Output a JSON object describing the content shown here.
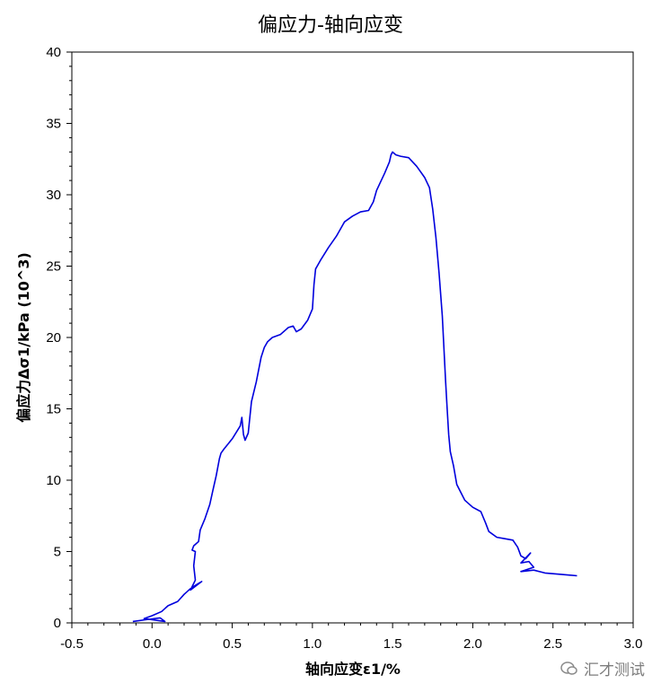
{
  "chart_data": {
    "type": "line",
    "title": "偏应力-轴向应变",
    "xlabel": "轴向应变ε1/%",
    "ylabel": "偏应力Δσ1/kPa  (10^3)",
    "xlim": [
      -0.5,
      3.0
    ],
    "ylim": [
      0,
      40
    ],
    "xticks": [
      -0.5,
      0.0,
      0.5,
      1.0,
      1.5,
      2.0,
      2.5,
      3.0
    ],
    "xtick_labels": [
      "-0.5",
      "0.0",
      "0.5",
      "1.0",
      "1.5",
      "2.0",
      "2.5",
      "3.0"
    ],
    "yticks": [
      0,
      5,
      10,
      15,
      20,
      25,
      30,
      35,
      40
    ],
    "ytick_labels": [
      "0",
      "5",
      "10",
      "15",
      "20",
      "25",
      "30",
      "35",
      "40"
    ],
    "grid": false,
    "line_color": "#0000dd",
    "series": [
      {
        "x": [
          -0.12,
          -0.02,
          0.05,
          0.08,
          -0.05,
          0.0,
          0.06,
          0.1,
          0.16,
          0.2,
          0.24,
          0.28,
          0.31,
          0.24,
          0.27,
          0.26,
          0.27,
          0.25,
          0.26,
          0.29,
          0.3,
          0.33,
          0.36,
          0.38,
          0.4,
          0.42,
          0.43,
          0.45,
          0.5,
          0.55,
          0.56,
          0.57,
          0.58,
          0.6,
          0.62,
          0.65,
          0.68,
          0.7,
          0.72,
          0.75,
          0.8,
          0.85,
          0.88,
          0.9,
          0.93,
          0.97,
          1.0,
          1.01,
          1.02,
          1.05,
          1.1,
          1.15,
          1.2,
          1.25,
          1.3,
          1.35,
          1.38,
          1.4,
          1.45,
          1.48,
          1.49,
          1.5,
          1.52,
          1.55,
          1.6,
          1.65,
          1.7,
          1.73,
          1.75,
          1.77,
          1.79,
          1.81,
          1.83,
          1.84,
          1.85,
          1.86,
          1.88,
          1.9,
          1.95,
          2.0,
          2.05,
          2.08,
          2.1,
          2.15,
          2.2,
          2.25,
          2.28,
          2.3,
          2.33,
          2.36,
          2.3,
          2.35,
          2.38,
          2.3,
          2.38,
          2.45,
          2.55,
          2.65
        ],
        "y": [
          0.1,
          0.25,
          0.35,
          0.1,
          0.3,
          0.5,
          0.8,
          1.2,
          1.5,
          2.0,
          2.4,
          2.7,
          2.9,
          2.3,
          3.0,
          4.0,
          5.0,
          5.1,
          5.4,
          5.7,
          6.5,
          7.3,
          8.3,
          9.3,
          10.3,
          11.5,
          11.9,
          12.2,
          12.9,
          13.8,
          14.4,
          13.2,
          12.8,
          13.3,
          15.5,
          16.9,
          18.6,
          19.3,
          19.7,
          20.0,
          20.2,
          20.7,
          20.8,
          20.4,
          20.6,
          21.2,
          22.0,
          23.7,
          24.8,
          25.4,
          26.3,
          27.1,
          28.1,
          28.5,
          28.8,
          28.9,
          29.5,
          30.3,
          31.5,
          32.3,
          32.8,
          33.0,
          32.8,
          32.7,
          32.6,
          32.0,
          31.2,
          30.5,
          29.0,
          27.0,
          24.5,
          21.5,
          17.0,
          15.0,
          13.2,
          12.0,
          11.0,
          9.7,
          8.6,
          8.1,
          7.8,
          7.0,
          6.4,
          6.0,
          5.9,
          5.8,
          5.3,
          4.7,
          4.5,
          4.9,
          4.2,
          4.3,
          3.9,
          3.6,
          3.7,
          3.5,
          3.4,
          3.3
        ]
      }
    ]
  },
  "watermark": "汇才测试"
}
